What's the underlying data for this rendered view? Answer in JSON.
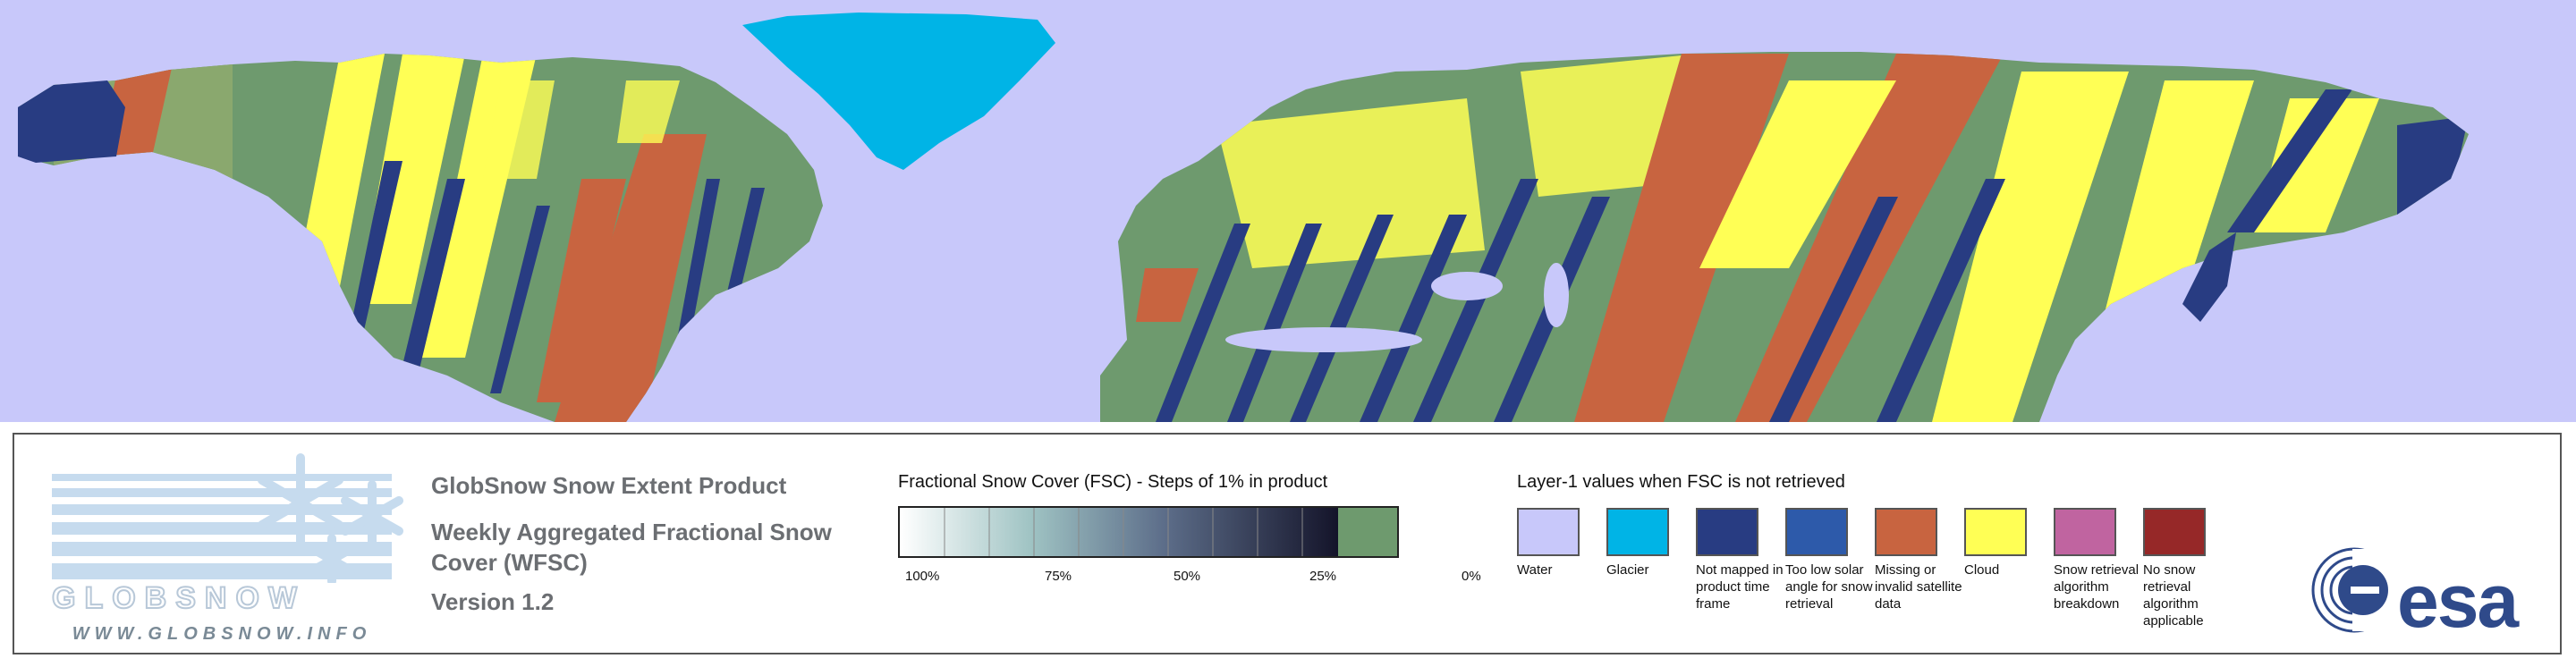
{
  "colors": {
    "water": "#c8c8fa",
    "glacier": "#00b4e6",
    "not_mapped": "#283c82",
    "too_low_solar": "#2d5aaa",
    "missing": "#c86440",
    "cloud": "#ffff55",
    "breakdown": "#c064a0",
    "no_snow_retrieval": "#962828",
    "snow_free": "#6e9a6e",
    "brand": "#2f4a8a"
  },
  "logo": {
    "word": "GLOBSNOW",
    "url": "WWW.GLOBSNOW.INFO"
  },
  "titles": {
    "line1": "GlobSnow Snow Extent Product",
    "line2": "Weekly Aggregated Fractional Snow Cover (WFSC)",
    "line3": "Version 1.2"
  },
  "fsc": {
    "title": "Fractional Snow Cover (FSC) - Steps of 1% in product",
    "ticks": [
      "100%",
      "75%",
      "50%",
      "25%",
      "0%"
    ]
  },
  "layer1": {
    "title": "Layer-1 values when FSC is not retrieved",
    "items": [
      {
        "label": "Water",
        "color": "#c8c8fa"
      },
      {
        "label": "Glacier",
        "color": "#00b4e6"
      },
      {
        "label": "Not mapped in product time frame",
        "color": "#283c82"
      },
      {
        "label": "Too low solar angle for snow retrieval",
        "color": "#2d5aaa"
      },
      {
        "label": "Missing or invalid satellite data",
        "color": "#c86440"
      },
      {
        "label": "Cloud",
        "color": "#ffff55"
      },
      {
        "label": "Snow retrieval algorithm breakdown",
        "color": "#c064a0"
      },
      {
        "label": "No snow retrieval algorithm applicable",
        "color": "#962828"
      }
    ]
  },
  "esa": {
    "text": "esa"
  }
}
